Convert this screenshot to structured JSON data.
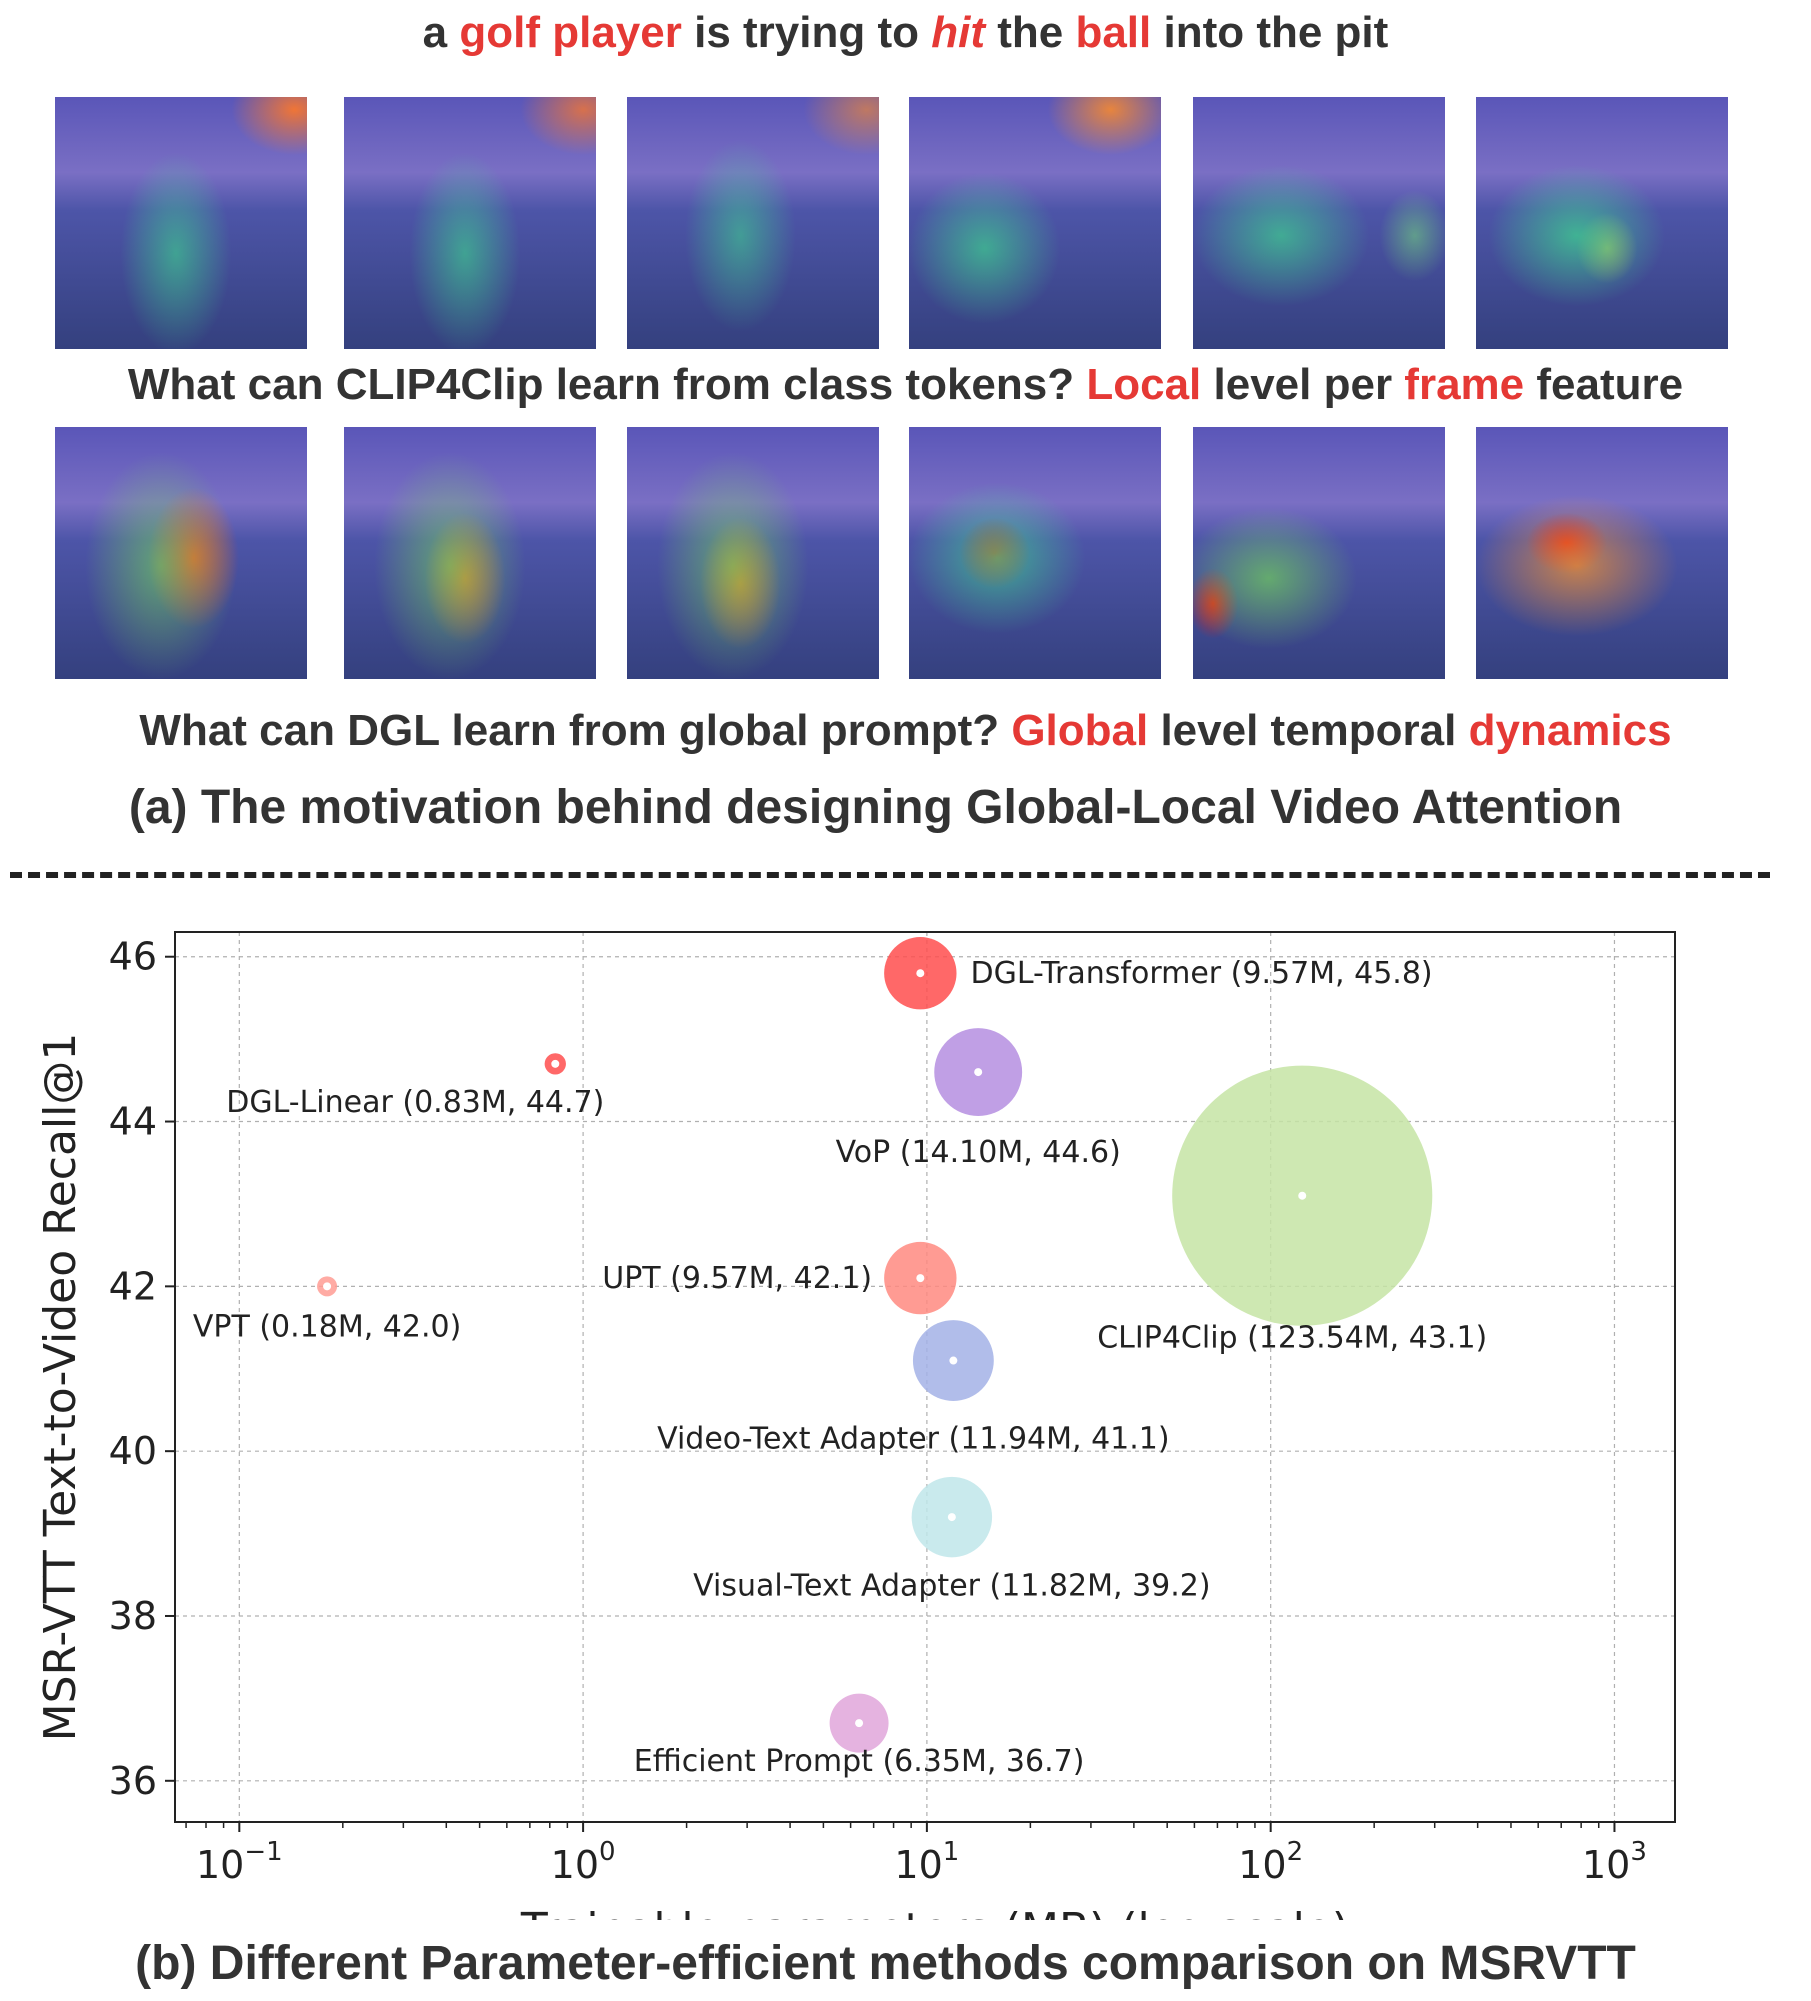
{
  "top_sentence": {
    "w1": "a ",
    "w2": "golf player",
    "w3": " is trying to ",
    "w4": "hit",
    "w5": " the ",
    "w6": "ball",
    "w7": " into the pit"
  },
  "row1_caption": {
    "w1": "What can CLIP4Clip learn from class tokens? ",
    "w2": "Local",
    "w3": " level per ",
    "w4": "frame",
    "w5": " feature"
  },
  "row2_caption": {
    "w1": "What can DGL learn from global prompt? ",
    "w2": "Global",
    "w3": " level temporal ",
    "w4": "dynamics"
  },
  "caption_a": "(a) The motivation behind designing Global-Local Video Attention",
  "caption_b": "(b) Different Parameter-efficient methods comparison on MSRVTT",
  "frames": {
    "row1_count": 6,
    "row2_count": 6
  },
  "chart_data": {
    "type": "scatter",
    "xlabel": "Trainable parameters (MB) (log scale)",
    "ylabel": "MSR-VTT Text-to-Video Recall@1",
    "x_scale": "log",
    "xlim": [
      0.065,
      1500
    ],
    "ylim": [
      35.5,
      46.3
    ],
    "x_ticks": [
      {
        "value": 0.1,
        "base": "10",
        "exp": "−1"
      },
      {
        "value": 1,
        "base": "10",
        "exp": "0"
      },
      {
        "value": 10,
        "base": "10",
        "exp": "1"
      },
      {
        "value": 100,
        "base": "10",
        "exp": "2"
      },
      {
        "value": 1000,
        "base": "10",
        "exp": "3"
      }
    ],
    "y_ticks": [
      36,
      38,
      40,
      42,
      44,
      46
    ],
    "grid": true,
    "series": [
      {
        "name": "DGL-Transformer",
        "label": "DGL-Transformer (9.57M, 45.8)",
        "x": 9.57,
        "y": 45.8,
        "color": "#ff4d4d",
        "label_anchor": "right"
      },
      {
        "name": "DGL-Linear",
        "label": "DGL-Linear (0.83M, 44.7)",
        "x": 0.83,
        "y": 44.7,
        "color": "#ff4d4d",
        "label_anchor": "below"
      },
      {
        "name": "VoP",
        "label": "VoP (14.10M, 44.6)",
        "x": 14.1,
        "y": 44.6,
        "color": "#b58ee0",
        "label_anchor": "below"
      },
      {
        "name": "CLIP4Clip",
        "label": "CLIP4Clip (123.54M, 43.1)",
        "x": 123.54,
        "y": 43.1,
        "color": "#c5e4a4",
        "label_anchor": "below"
      },
      {
        "name": "UPT",
        "label": "UPT (9.57M, 42.1)",
        "x": 9.57,
        "y": 42.1,
        "color": "#ff8a80",
        "label_anchor": "left"
      },
      {
        "name": "VPT",
        "label": "VPT (0.18M, 42.0)",
        "x": 0.18,
        "y": 42.0,
        "color": "#ff9c94",
        "label_anchor": "below"
      },
      {
        "name": "Video-Text Adapter",
        "label": "Video-Text Adapter (11.94M, 41.1)",
        "x": 11.94,
        "y": 41.1,
        "color": "#a3b1e6",
        "label_anchor": "below"
      },
      {
        "name": "Visual-Text Adapter",
        "label": "Visual-Text Adapter (11.82M, 39.2)",
        "x": 11.82,
        "y": 39.2,
        "color": "#bfe6ea",
        "label_anchor": "below"
      },
      {
        "name": "Efficient Prompt",
        "label": "Efficient Prompt (6.35M, 36.7)",
        "x": 6.35,
        "y": 36.7,
        "color": "#e1a6da",
        "label_anchor": "below"
      }
    ]
  }
}
